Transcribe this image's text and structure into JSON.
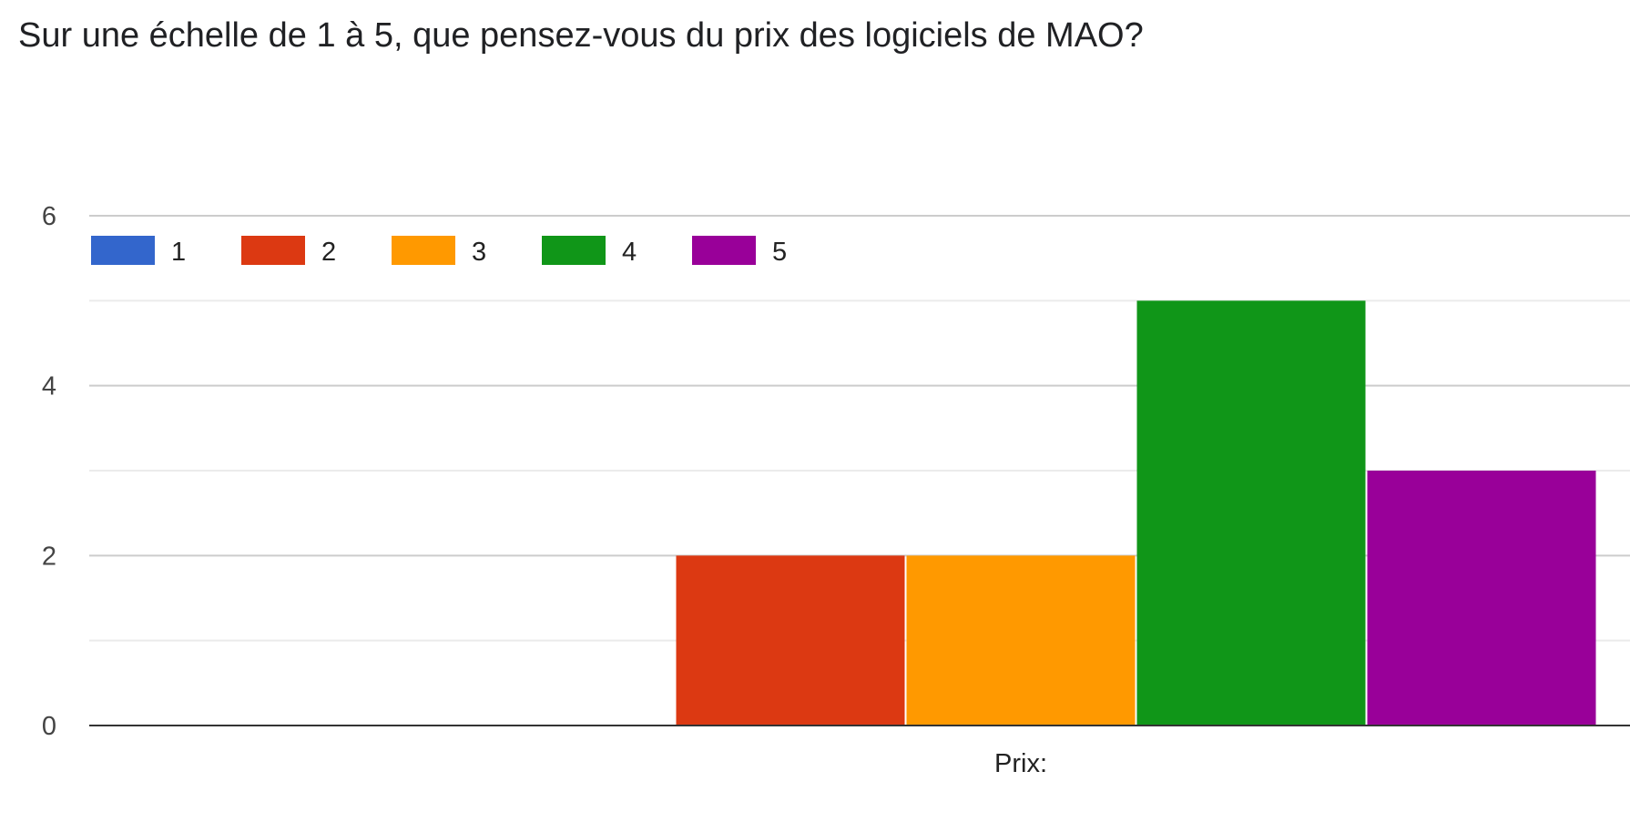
{
  "title": "Sur une échelle de 1 à 5, que pensez-vous du prix des logiciels de MAO?",
  "chart_data": {
    "type": "bar",
    "categories": [
      "Prix:"
    ],
    "series": [
      {
        "name": "1",
        "values": [
          0
        ],
        "color": "#3366cc"
      },
      {
        "name": "2",
        "values": [
          2
        ],
        "color": "#dc3912"
      },
      {
        "name": "3",
        "values": [
          2
        ],
        "color": "#ff9900"
      },
      {
        "name": "4",
        "values": [
          5
        ],
        "color": "#109618"
      },
      {
        "name": "5",
        "values": [
          3
        ],
        "color": "#990099"
      }
    ],
    "yticks": [
      "0",
      "2",
      "4",
      "6"
    ],
    "ylim": [
      0,
      6
    ],
    "legend_position": "top-left",
    "grid": true
  }
}
